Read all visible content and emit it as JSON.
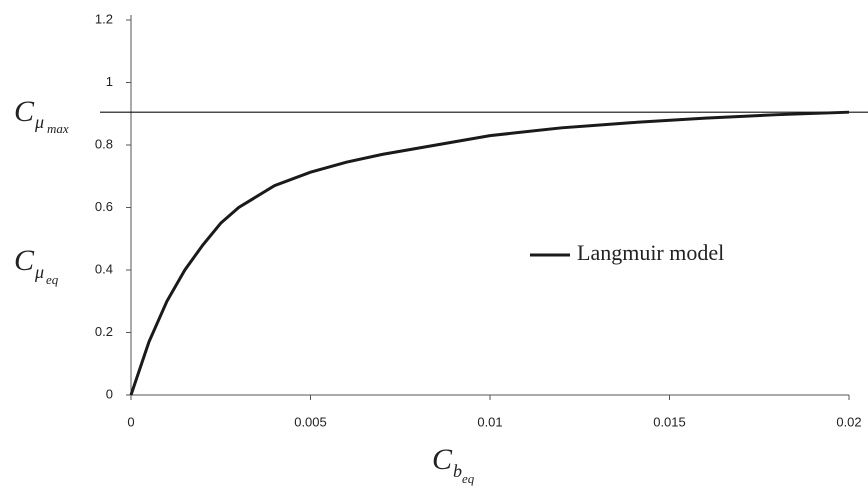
{
  "chart_data": {
    "type": "line",
    "x": [
      0,
      0.0005,
      0.001,
      0.0015,
      0.002,
      0.0025,
      0.003,
      0.004,
      0.005,
      0.006,
      0.007,
      0.008,
      0.009,
      0.01,
      0.012,
      0.014,
      0.016,
      0.018,
      0.02
    ],
    "series": [
      {
        "name": "Langmuir model",
        "color": "#1a1a1a",
        "values": [
          0,
          0.17,
          0.3,
          0.4,
          0.48,
          0.55,
          0.6,
          0.67,
          0.713,
          0.745,
          0.77,
          0.79,
          0.81,
          0.83,
          0.855,
          0.872,
          0.886,
          0.897,
          0.905
        ]
      }
    ],
    "xlim": [
      0,
      0.02
    ],
    "xticks": [
      0,
      0.005,
      0.01,
      0.015,
      0.02
    ],
    "ylim": [
      0,
      1.2
    ],
    "yticks": [
      0,
      0.2,
      0.4,
      0.6,
      0.8,
      1,
      1.2
    ],
    "x_label": {
      "base": "C",
      "sub": "b",
      "subsub": "eq"
    },
    "y_label": {
      "base": "C",
      "sub": "μ",
      "subsub": "eq"
    },
    "reference_line": {
      "value": 0.905,
      "label": {
        "base": "C",
        "sub": "μ",
        "subsub": "max"
      }
    },
    "legend": "right"
  }
}
